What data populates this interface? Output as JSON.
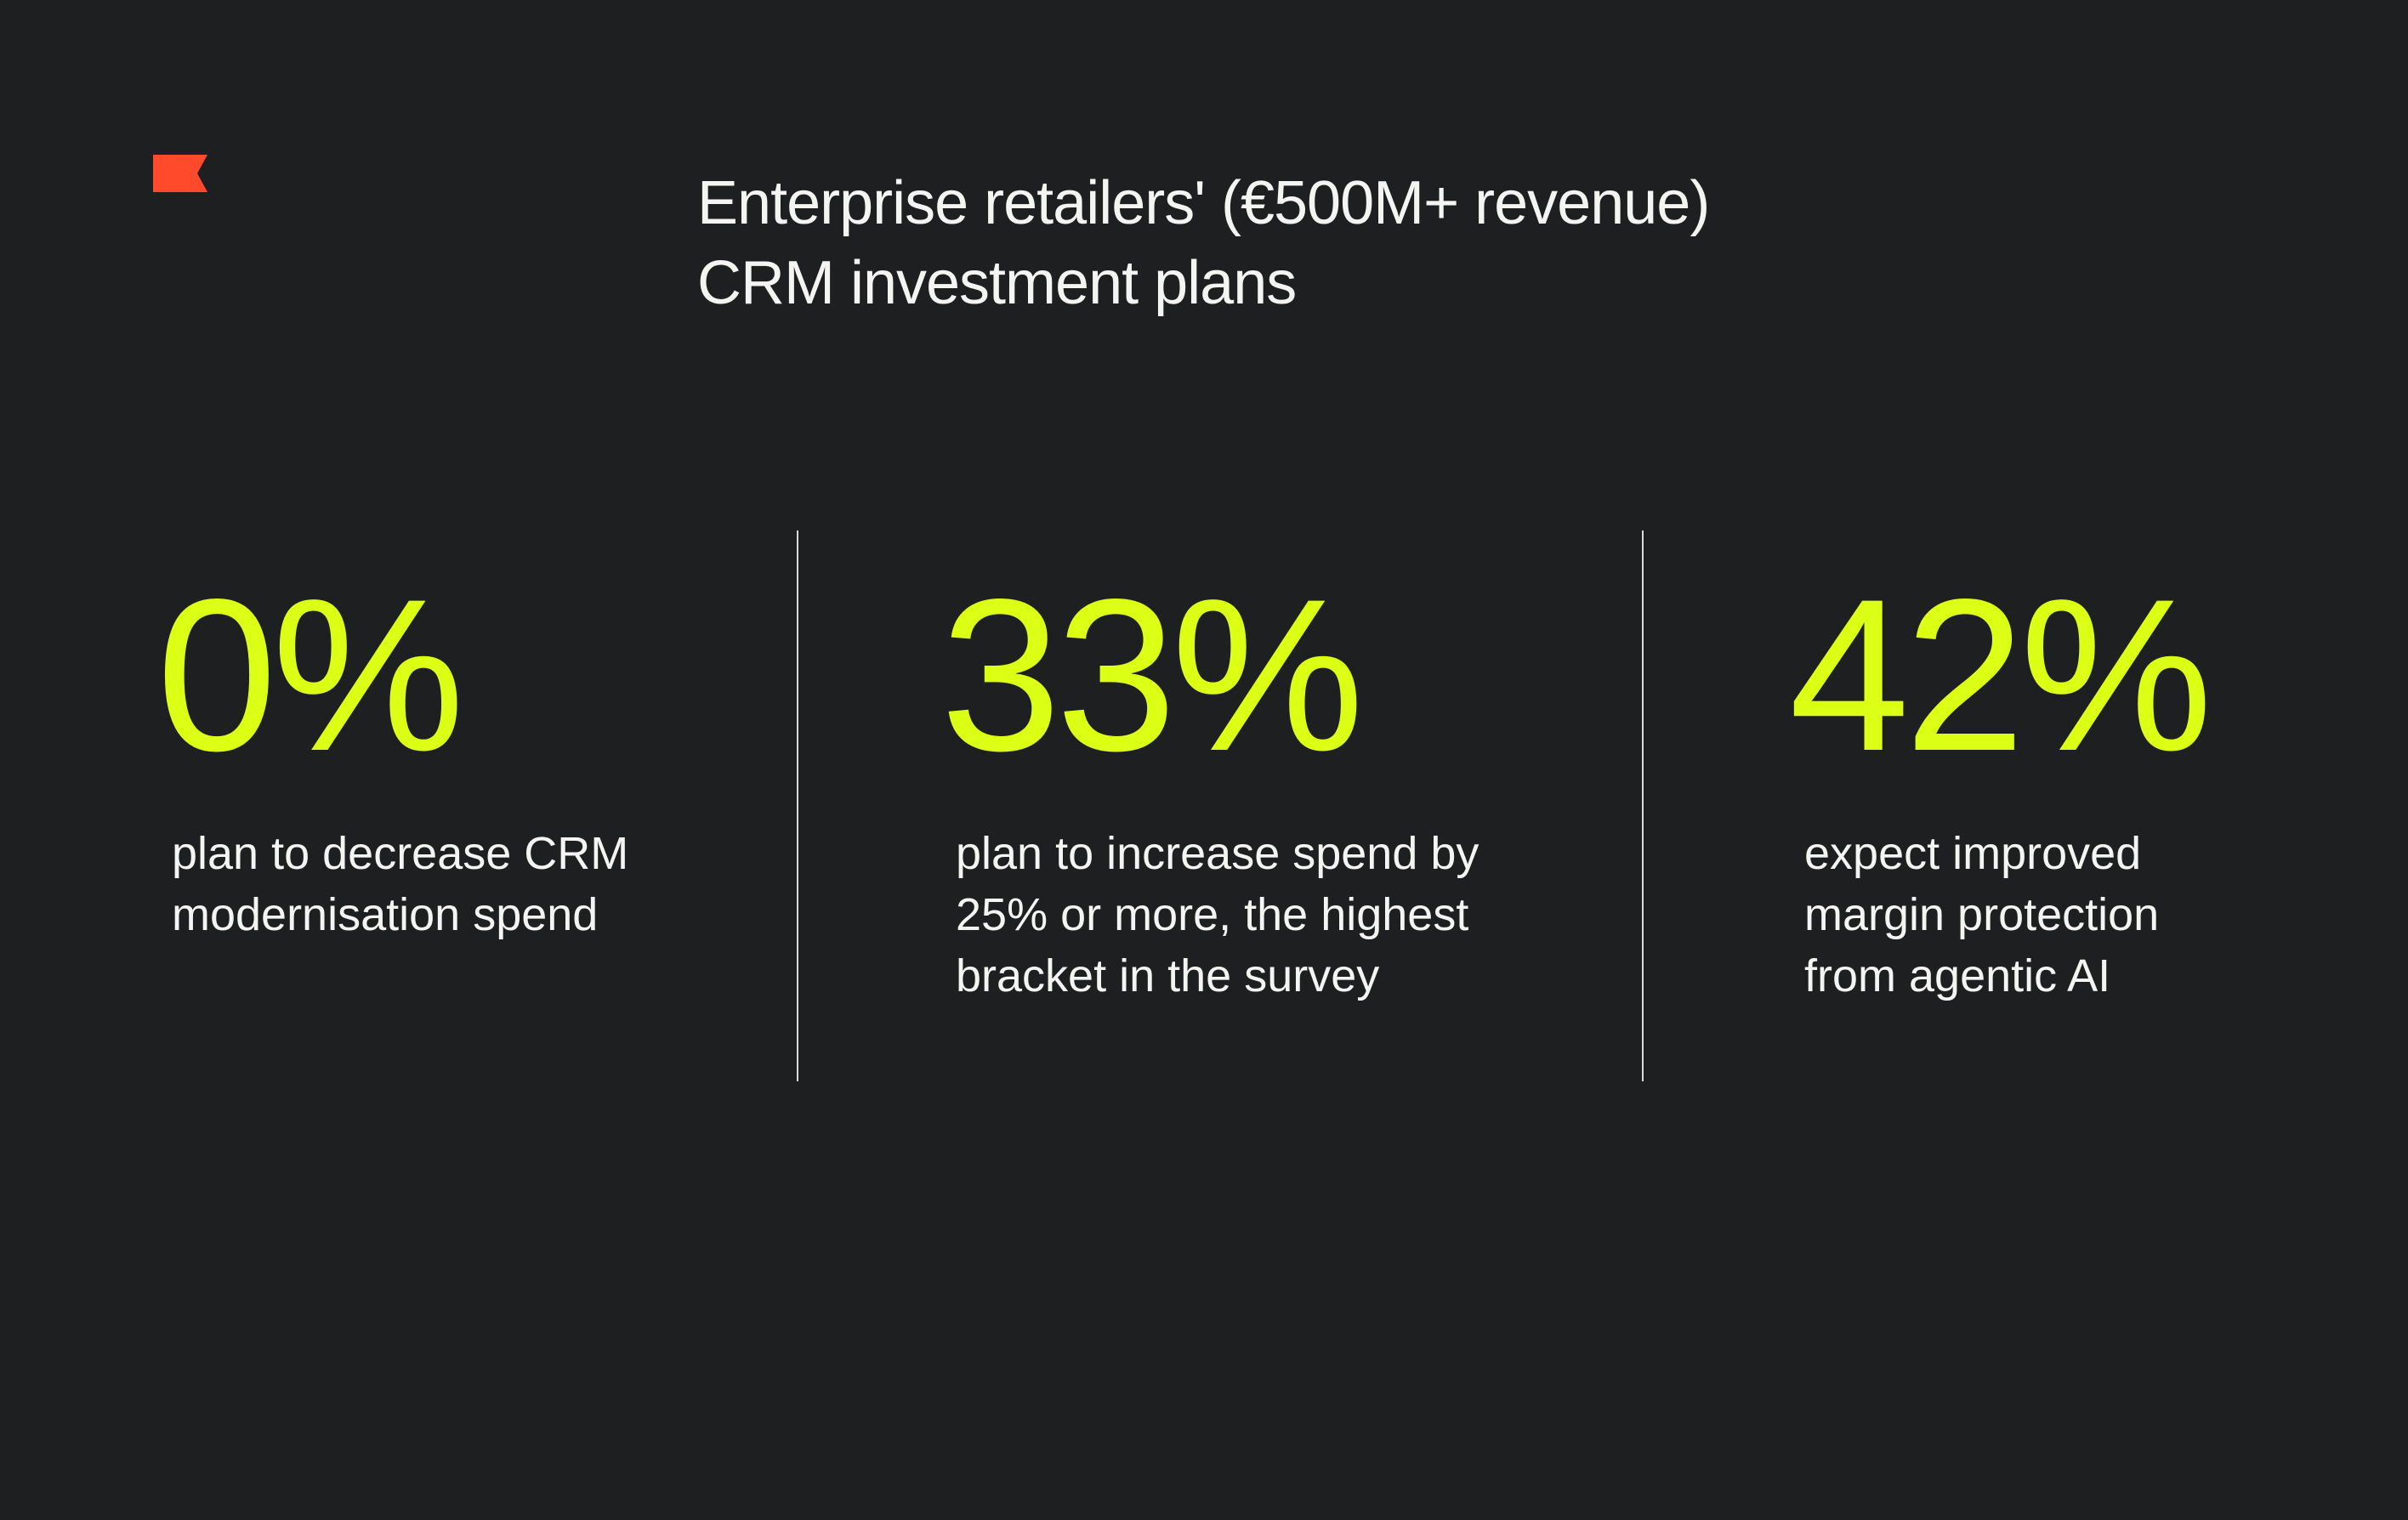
{
  "brand": {
    "logo_icon": "flag-icon",
    "accent_color": "#ff4b2b"
  },
  "title": {
    "line1": "Enterprise retailers' (€500M+ revenue)",
    "line2": "CRM investment plans"
  },
  "highlight_color": "#dcff16",
  "stats": [
    {
      "value": "0%",
      "desc_lines": [
        "plan to decrease CRM",
        "modernisation spend"
      ]
    },
    {
      "value": "33%",
      "desc_lines": [
        "plan to increase spend by",
        "25% or more, the highest",
        "bracket in the survey"
      ]
    },
    {
      "value": "42%",
      "desc_lines": [
        "expect improved",
        "margin protection",
        "from agentic AI"
      ]
    }
  ]
}
